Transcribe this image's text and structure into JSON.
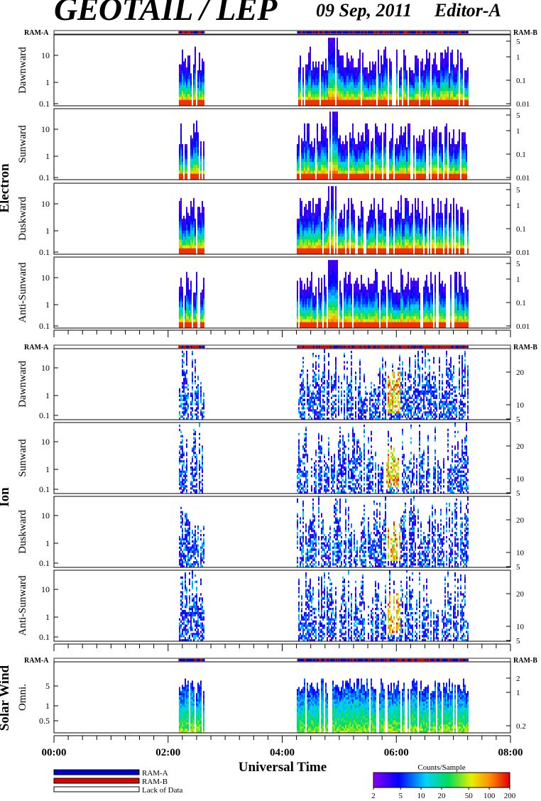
{
  "title": "GEOTAIL / LEP",
  "date": "09 Sep, 2011",
  "editor": "Editor-A",
  "chart_data": {
    "type": "heatmap",
    "xlabel": "Universal Time",
    "x_ticks": [
      "00:00",
      "02:00",
      "04:00",
      "06:00",
      "08:00"
    ],
    "xlim_hours": [
      0,
      8
    ],
    "groups": [
      {
        "name": "Electron",
        "strip_left": "RAM-A",
        "strip_right": "RAM-B",
        "panels": [
          {
            "name": "Dawnward",
            "left_ticks": [
              "10",
              "1",
              "0.1"
            ],
            "right_ticks": [
              "5",
              "1",
              "0.1",
              "0.01"
            ]
          },
          {
            "name": "Sunward",
            "left_ticks": [
              "10",
              "1",
              "0.1"
            ],
            "right_ticks": [
              "5",
              "1",
              "0.1",
              "0.01"
            ]
          },
          {
            "name": "Duskward",
            "left_ticks": [
              "10",
              "1",
              "0.1"
            ],
            "right_ticks": [
              "5",
              "1",
              "0.1",
              "0.01"
            ]
          },
          {
            "name": "Anti-Sunward",
            "left_ticks": [
              "10",
              "1",
              "0.1"
            ],
            "right_ticks": [
              "5",
              "1",
              "0.1",
              "0.01"
            ]
          }
        ]
      },
      {
        "name": "Ion",
        "strip_left": "RAM-A",
        "strip_right": "RAM-B",
        "panels": [
          {
            "name": "Dawnward",
            "left_ticks": [
              "10",
              "1",
              "0.1"
            ],
            "right_ticks": [
              "20",
              "10",
              "5"
            ]
          },
          {
            "name": "Sunward",
            "left_ticks": [
              "10",
              "1",
              "0.1"
            ],
            "right_ticks": [
              "20",
              "10",
              "5"
            ]
          },
          {
            "name": "Duskward",
            "left_ticks": [
              "10",
              "1",
              "0.1"
            ],
            "right_ticks": [
              "20",
              "10",
              "5"
            ]
          },
          {
            "name": "Anti-Sunward",
            "left_ticks": [
              "10",
              "1",
              "0.1"
            ],
            "right_ticks": [
              "20",
              "10",
              "5"
            ]
          }
        ]
      },
      {
        "name": "Solar Wind",
        "strip_left": "RAM-A",
        "strip_right": "RAM-B",
        "panels": [
          {
            "name": "Omni.",
            "left_ticks": [
              "5",
              "1",
              "0.5"
            ],
            "right_ticks": [
              "2",
              "1",
              "0.2"
            ]
          }
        ]
      }
    ],
    "data_intervals_hours": [
      [
        2.17,
        2.63
      ],
      [
        4.25,
        7.25
      ]
    ],
    "legend": [
      {
        "label": "RAM-A",
        "color": "#0000cc"
      },
      {
        "label": "RAM-B",
        "color": "#dd0000"
      },
      {
        "label": "Lack of Data",
        "color": "#ffffff"
      }
    ],
    "colorbar": {
      "title": "Counts/Sample",
      "ticks": [
        "2",
        "5",
        "10",
        "20",
        "50",
        "100",
        "200"
      ],
      "scale": "log",
      "range": [
        2,
        200
      ]
    }
  }
}
